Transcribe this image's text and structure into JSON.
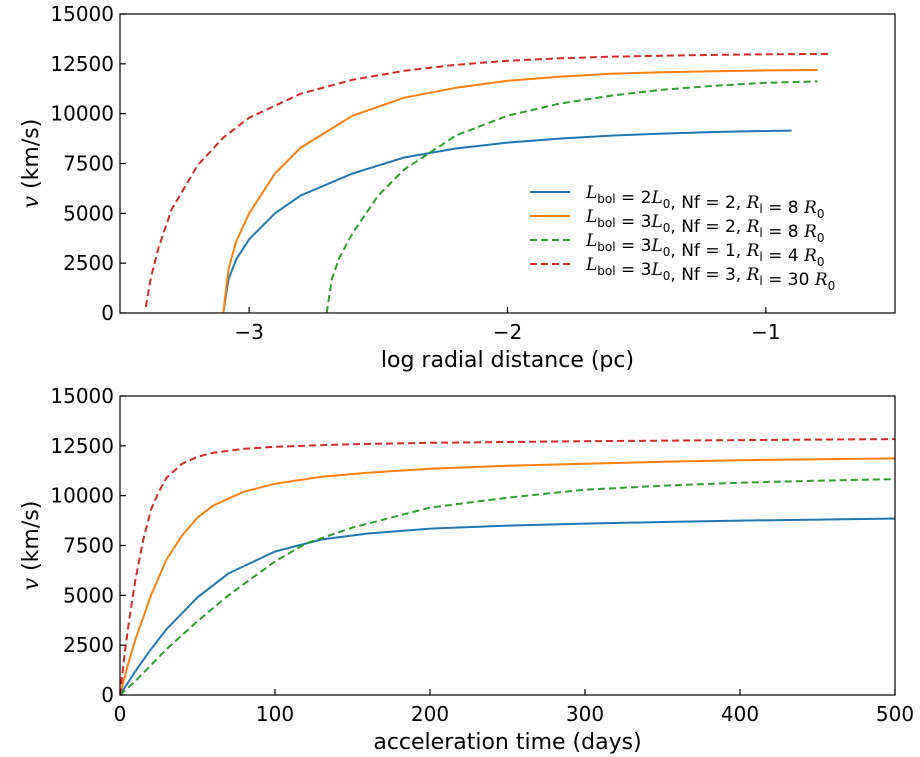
{
  "chart_data": [
    {
      "type": "line",
      "xlabel": "log radial distance (pc)",
      "ylabel": "v (km/s)",
      "xlim": [
        -3.5,
        -0.5
      ],
      "ylim": [
        0,
        15000
      ],
      "xticks": [
        -3,
        -2,
        -1
      ],
      "xtick_labels": [
        "−3",
        "−2",
        "−1"
      ],
      "yticks": [
        0,
        2500,
        5000,
        7500,
        10000,
        12500,
        15000
      ],
      "ytick_labels": [
        "0",
        "2500",
        "5000",
        "7500",
        "10000",
        "12500",
        "15000"
      ],
      "legend_position": "center-right",
      "series": [
        {
          "name": "L_bol = 2L_0, Nf = 2, R_l = 8 R_0",
          "color": "#1f77b4",
          "dash": "solid",
          "x": [
            -3.1,
            -3.08,
            -3.05,
            -3.0,
            -2.9,
            -2.8,
            -2.6,
            -2.4,
            -2.2,
            -2.0,
            -1.8,
            -1.6,
            -1.4,
            -1.2,
            -1.0,
            -0.9
          ],
          "y": [
            0,
            1700,
            2700,
            3700,
            5000,
            5900,
            7000,
            7800,
            8250,
            8550,
            8750,
            8900,
            9000,
            9080,
            9130,
            9150
          ]
        },
        {
          "name": "L_bol = 3L_0, Nf = 2, R_l = 8 R_0",
          "color": "#ff7f0e",
          "dash": "solid",
          "x": [
            -3.1,
            -3.08,
            -3.05,
            -3.0,
            -2.9,
            -2.8,
            -2.6,
            -2.4,
            -2.2,
            -2.0,
            -1.8,
            -1.6,
            -1.4,
            -1.2,
            -1.0,
            -0.8
          ],
          "y": [
            0,
            2200,
            3600,
            5000,
            7000,
            8300,
            9900,
            10800,
            11300,
            11650,
            11850,
            12000,
            12080,
            12130,
            12170,
            12190
          ]
        },
        {
          "name": "L_bol = 3L_0, Nf = 1, R_l = 4 R_0",
          "color": "#2ca02c",
          "dash": "dashed",
          "x": [
            -2.7,
            -2.68,
            -2.65,
            -2.6,
            -2.5,
            -2.4,
            -2.2,
            -2.0,
            -1.8,
            -1.6,
            -1.4,
            -1.2,
            -1.0,
            -0.8
          ],
          "y": [
            0,
            1700,
            2800,
            4000,
            5900,
            7200,
            8900,
            9900,
            10500,
            10900,
            11200,
            11400,
            11550,
            11620
          ]
        },
        {
          "name": "L_bol = 3L_0, Nf = 3, R_l = 30 R_0",
          "color": "#d62728",
          "dash": "dashed",
          "x": [
            -3.4,
            -3.38,
            -3.35,
            -3.3,
            -3.2,
            -3.1,
            -3.0,
            -2.8,
            -2.6,
            -2.4,
            -2.2,
            -2.0,
            -1.8,
            -1.6,
            -1.4,
            -1.2,
            -1.0,
            -0.75
          ],
          "y": [
            300,
            1800,
            3300,
            5200,
            7400,
            8800,
            9800,
            11000,
            11700,
            12150,
            12450,
            12650,
            12780,
            12860,
            12910,
            12950,
            12980,
            13000
          ]
        }
      ]
    },
    {
      "type": "line",
      "xlabel": "acceleration time (days)",
      "ylabel": "v (km/s)",
      "xlim": [
        0,
        500
      ],
      "ylim": [
        0,
        15000
      ],
      "xticks": [
        0,
        100,
        200,
        300,
        400,
        500
      ],
      "xtick_labels": [
        "0",
        "100",
        "200",
        "300",
        "400",
        "500"
      ],
      "yticks": [
        0,
        2500,
        5000,
        7500,
        10000,
        12500,
        15000
      ],
      "ytick_labels": [
        "0",
        "2500",
        "5000",
        "7500",
        "10000",
        "12500",
        "15000"
      ],
      "series": [
        {
          "color": "#1f77b4",
          "dash": "solid",
          "x": [
            0,
            10,
            20,
            30,
            40,
            50,
            70,
            100,
            130,
            160,
            200,
            250,
            300,
            350,
            400,
            450,
            500
          ],
          "y": [
            0,
            1200,
            2300,
            3300,
            4100,
            4900,
            6100,
            7200,
            7800,
            8100,
            8350,
            8500,
            8600,
            8680,
            8750,
            8800,
            8850
          ]
        },
        {
          "color": "#ff7f0e",
          "dash": "solid",
          "x": [
            0,
            5,
            10,
            20,
            30,
            40,
            50,
            60,
            80,
            100,
            130,
            160,
            200,
            250,
            300,
            350,
            400,
            450,
            500
          ],
          "y": [
            0,
            1500,
            2800,
            5000,
            6800,
            8000,
            8900,
            9500,
            10200,
            10600,
            10950,
            11150,
            11350,
            11500,
            11600,
            11700,
            11780,
            11830,
            11870
          ]
        },
        {
          "color": "#2ca02c",
          "dash": "dashed",
          "x": [
            0,
            10,
            20,
            30,
            40,
            50,
            70,
            100,
            120,
            150,
            200,
            250,
            300,
            350,
            400,
            450,
            500
          ],
          "y": [
            0,
            700,
            1500,
            2300,
            3000,
            3700,
            5000,
            6700,
            7600,
            8400,
            9400,
            9900,
            10300,
            10500,
            10650,
            10750,
            10830
          ]
        },
        {
          "color": "#d62728",
          "dash": "dashed",
          "x": [
            0,
            3,
            6,
            10,
            15,
            20,
            25,
            30,
            40,
            50,
            60,
            80,
            100,
            150,
            200,
            300,
            400,
            500
          ],
          "y": [
            0,
            2100,
            3800,
            5800,
            7800,
            9300,
            10200,
            10900,
            11600,
            11950,
            12150,
            12350,
            12450,
            12580,
            12650,
            12730,
            12790,
            12840
          ]
        }
      ]
    }
  ]
}
